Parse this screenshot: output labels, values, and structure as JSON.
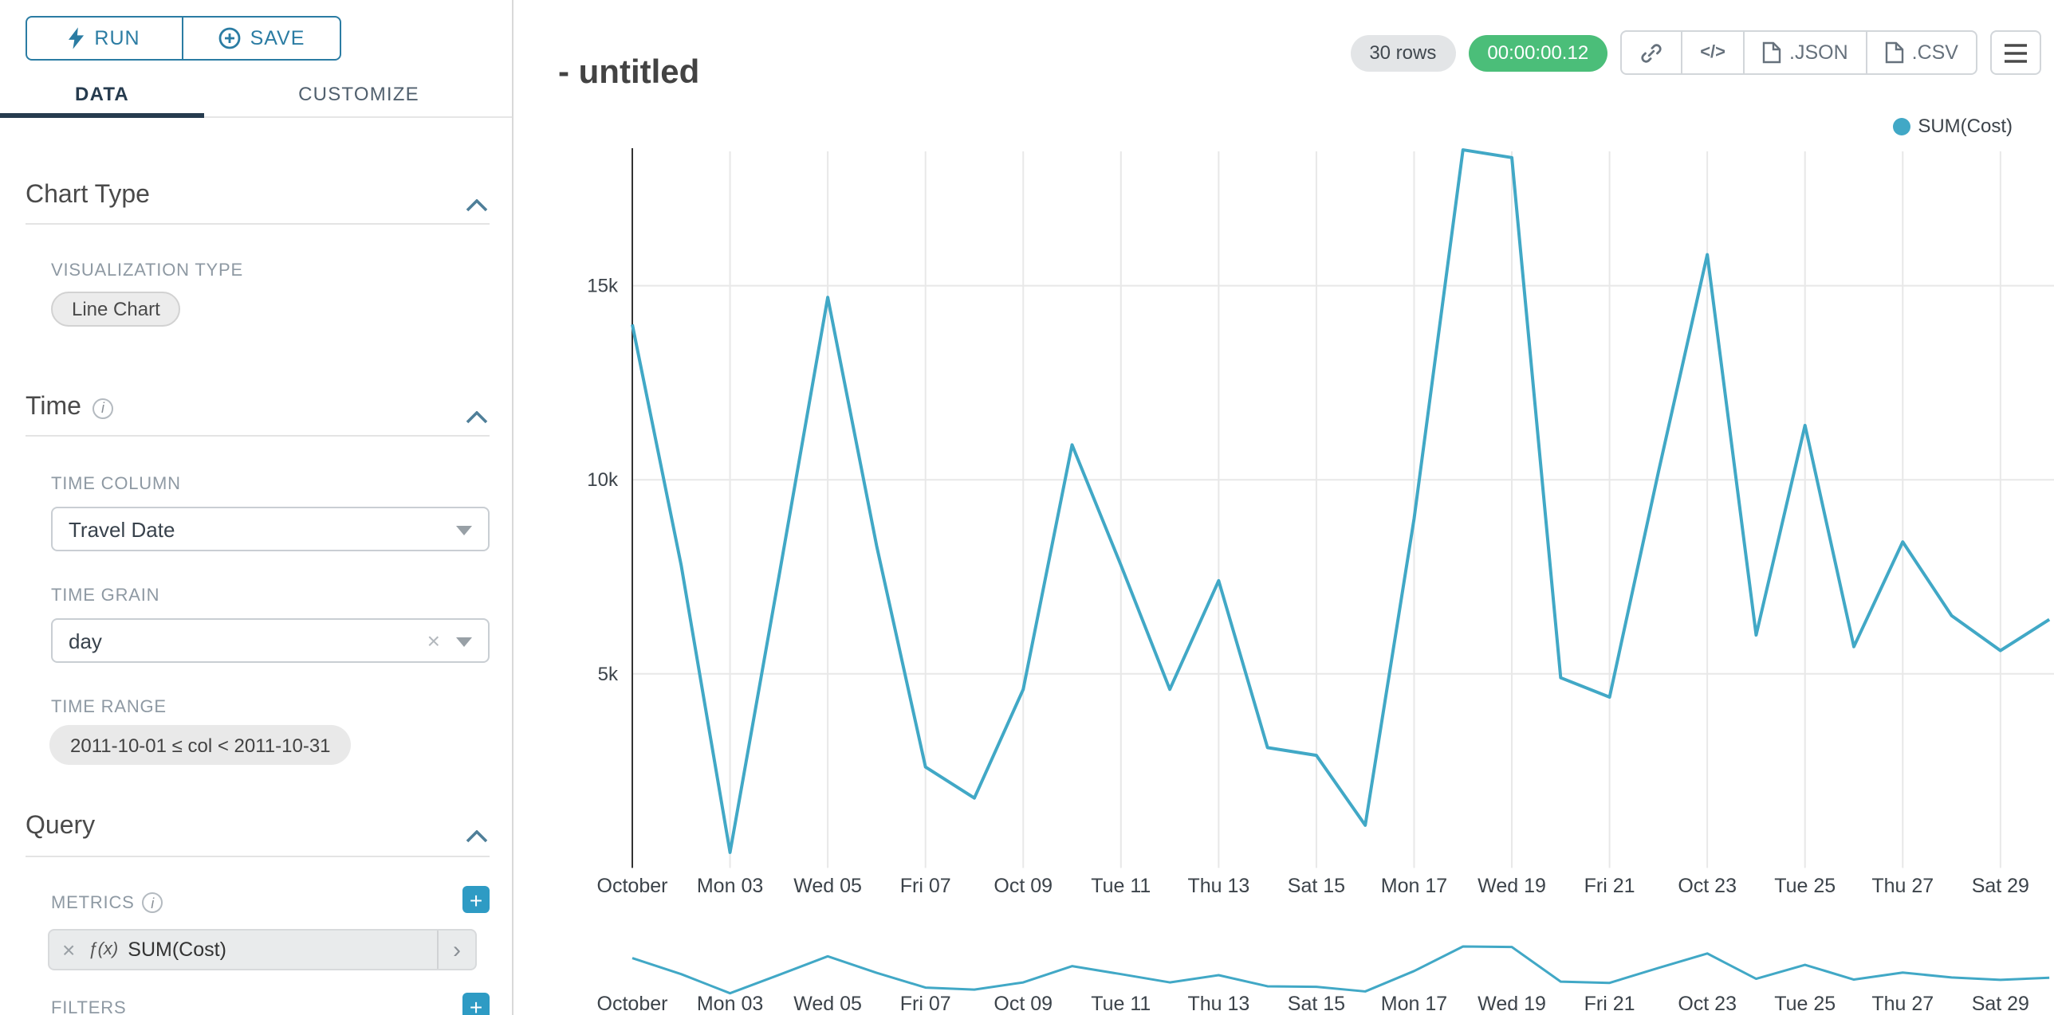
{
  "colors": {
    "accent": "#2E9BC4",
    "run_save": "#2B7CA3",
    "chevron": "#4F7F99",
    "line": "#41A8C6",
    "timer_bg": "#4BBE79",
    "tab_active_underline": "#263B4E"
  },
  "sidebar": {
    "run_label": "RUN",
    "save_label": "SAVE",
    "tabs": [
      {
        "label": "DATA"
      },
      {
        "label": "CUSTOMIZE"
      }
    ],
    "chart_type": {
      "title": "Chart Type",
      "viz_label": "VISUALIZATION TYPE",
      "viz_value": "Line Chart"
    },
    "time": {
      "title": "Time",
      "column_label": "TIME COLUMN",
      "column_value": "Travel Date",
      "grain_label": "TIME GRAIN",
      "grain_value": "day",
      "range_label": "TIME RANGE",
      "range_value": "2011-10-01 ≤ col < 2011-10-31"
    },
    "query": {
      "title": "Query",
      "metrics_label": "METRICS",
      "metric_fx": "ƒ(x)",
      "metric_value": "SUM(Cost)",
      "filters_label": "FILTERS"
    }
  },
  "header": {
    "title": "- untitled",
    "rows_badge": "30 rows",
    "timer": "00:00:00.12",
    "code_icon": "</>",
    "json_label": ".JSON",
    "csv_label": ".CSV"
  },
  "legend": {
    "label": "SUM(Cost)"
  },
  "icons": {
    "plus": "+",
    "clear": "×",
    "caret_right": "›",
    "info": "i"
  },
  "chart_data": {
    "type": "line",
    "title": "- untitled",
    "legend_position": "top-right",
    "grid": true,
    "ylim": [
      0,
      18600
    ],
    "yticks": [
      {
        "label": "5k",
        "value": 5000
      },
      {
        "label": "10k",
        "value": 10000
      },
      {
        "label": "15k",
        "value": 15000
      }
    ],
    "xticklabels": [
      "October",
      "Mon 03",
      "Wed 05",
      "Fri 07",
      "Oct 09",
      "Tue 11",
      "Thu 13",
      "Sat 15",
      "Mon 17",
      "Wed 19",
      "Fri 21",
      "Oct 23",
      "Tue 25",
      "Thu 27",
      "Sat 29"
    ],
    "tick_every": 2,
    "has_range_selector_minichart": true,
    "series": [
      {
        "name": "SUM(Cost)",
        "color": "#41A8C6",
        "x": [
          "2011-10-01",
          "2011-10-02",
          "2011-10-03",
          "2011-10-04",
          "2011-10-05",
          "2011-10-06",
          "2011-10-07",
          "2011-10-08",
          "2011-10-09",
          "2011-10-10",
          "2011-10-11",
          "2011-10-12",
          "2011-10-13",
          "2011-10-14",
          "2011-10-15",
          "2011-10-16",
          "2011-10-17",
          "2011-10-18",
          "2011-10-19",
          "2011-10-20",
          "2011-10-21",
          "2011-10-22",
          "2011-10-23",
          "2011-10-24",
          "2011-10-25",
          "2011-10-26",
          "2011-10-27",
          "2011-10-28",
          "2011-10-29",
          "2011-10-30"
        ],
        "values": [
          14000,
          7800,
          400,
          7500,
          14700,
          8300,
          2600,
          1800,
          4600,
          10900,
          7800,
          4600,
          7400,
          3100,
          2900,
          1100,
          9000,
          18500,
          18300,
          4900,
          4400,
          10200,
          15800,
          6000,
          11400,
          5700,
          8400,
          6500,
          5600,
          6400
        ]
      }
    ]
  }
}
